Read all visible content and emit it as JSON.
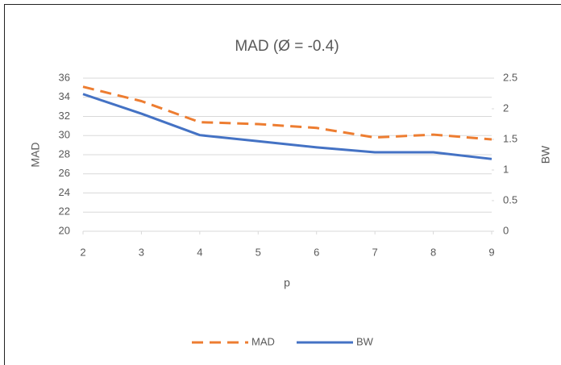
{
  "chart_data": {
    "type": "line",
    "title": "MAD (Ø = -0.4)",
    "x_label": "p",
    "y_label": "MAD",
    "y2_label": "BW",
    "x": [
      2,
      3,
      4,
      5,
      6,
      7,
      8,
      9
    ],
    "xlim": [
      2,
      9
    ],
    "xticks": [
      2,
      3,
      4,
      5,
      6,
      7,
      8,
      9
    ],
    "ylim": [
      20,
      36
    ],
    "yticks": [
      20,
      22,
      24,
      26,
      28,
      30,
      32,
      34,
      36
    ],
    "y2lim": [
      0,
      2.5
    ],
    "y2ticks": [
      0,
      0.5,
      1,
      1.5,
      2,
      2.5
    ],
    "grid": true,
    "legend": "bottom",
    "series": [
      {
        "name": "MAD",
        "color": "#ed7d31",
        "dashed": true,
        "values": [
          35.1,
          33.6,
          31.4,
          31.2,
          30.8,
          29.8,
          30.1,
          29.6
        ]
      },
      {
        "name": "BW",
        "color": "#4472c4",
        "axis": "y2",
        "values": [
          2.24,
          1.92,
          1.57,
          1.47,
          1.37,
          1.29,
          1.29,
          1.18
        ]
      }
    ]
  }
}
